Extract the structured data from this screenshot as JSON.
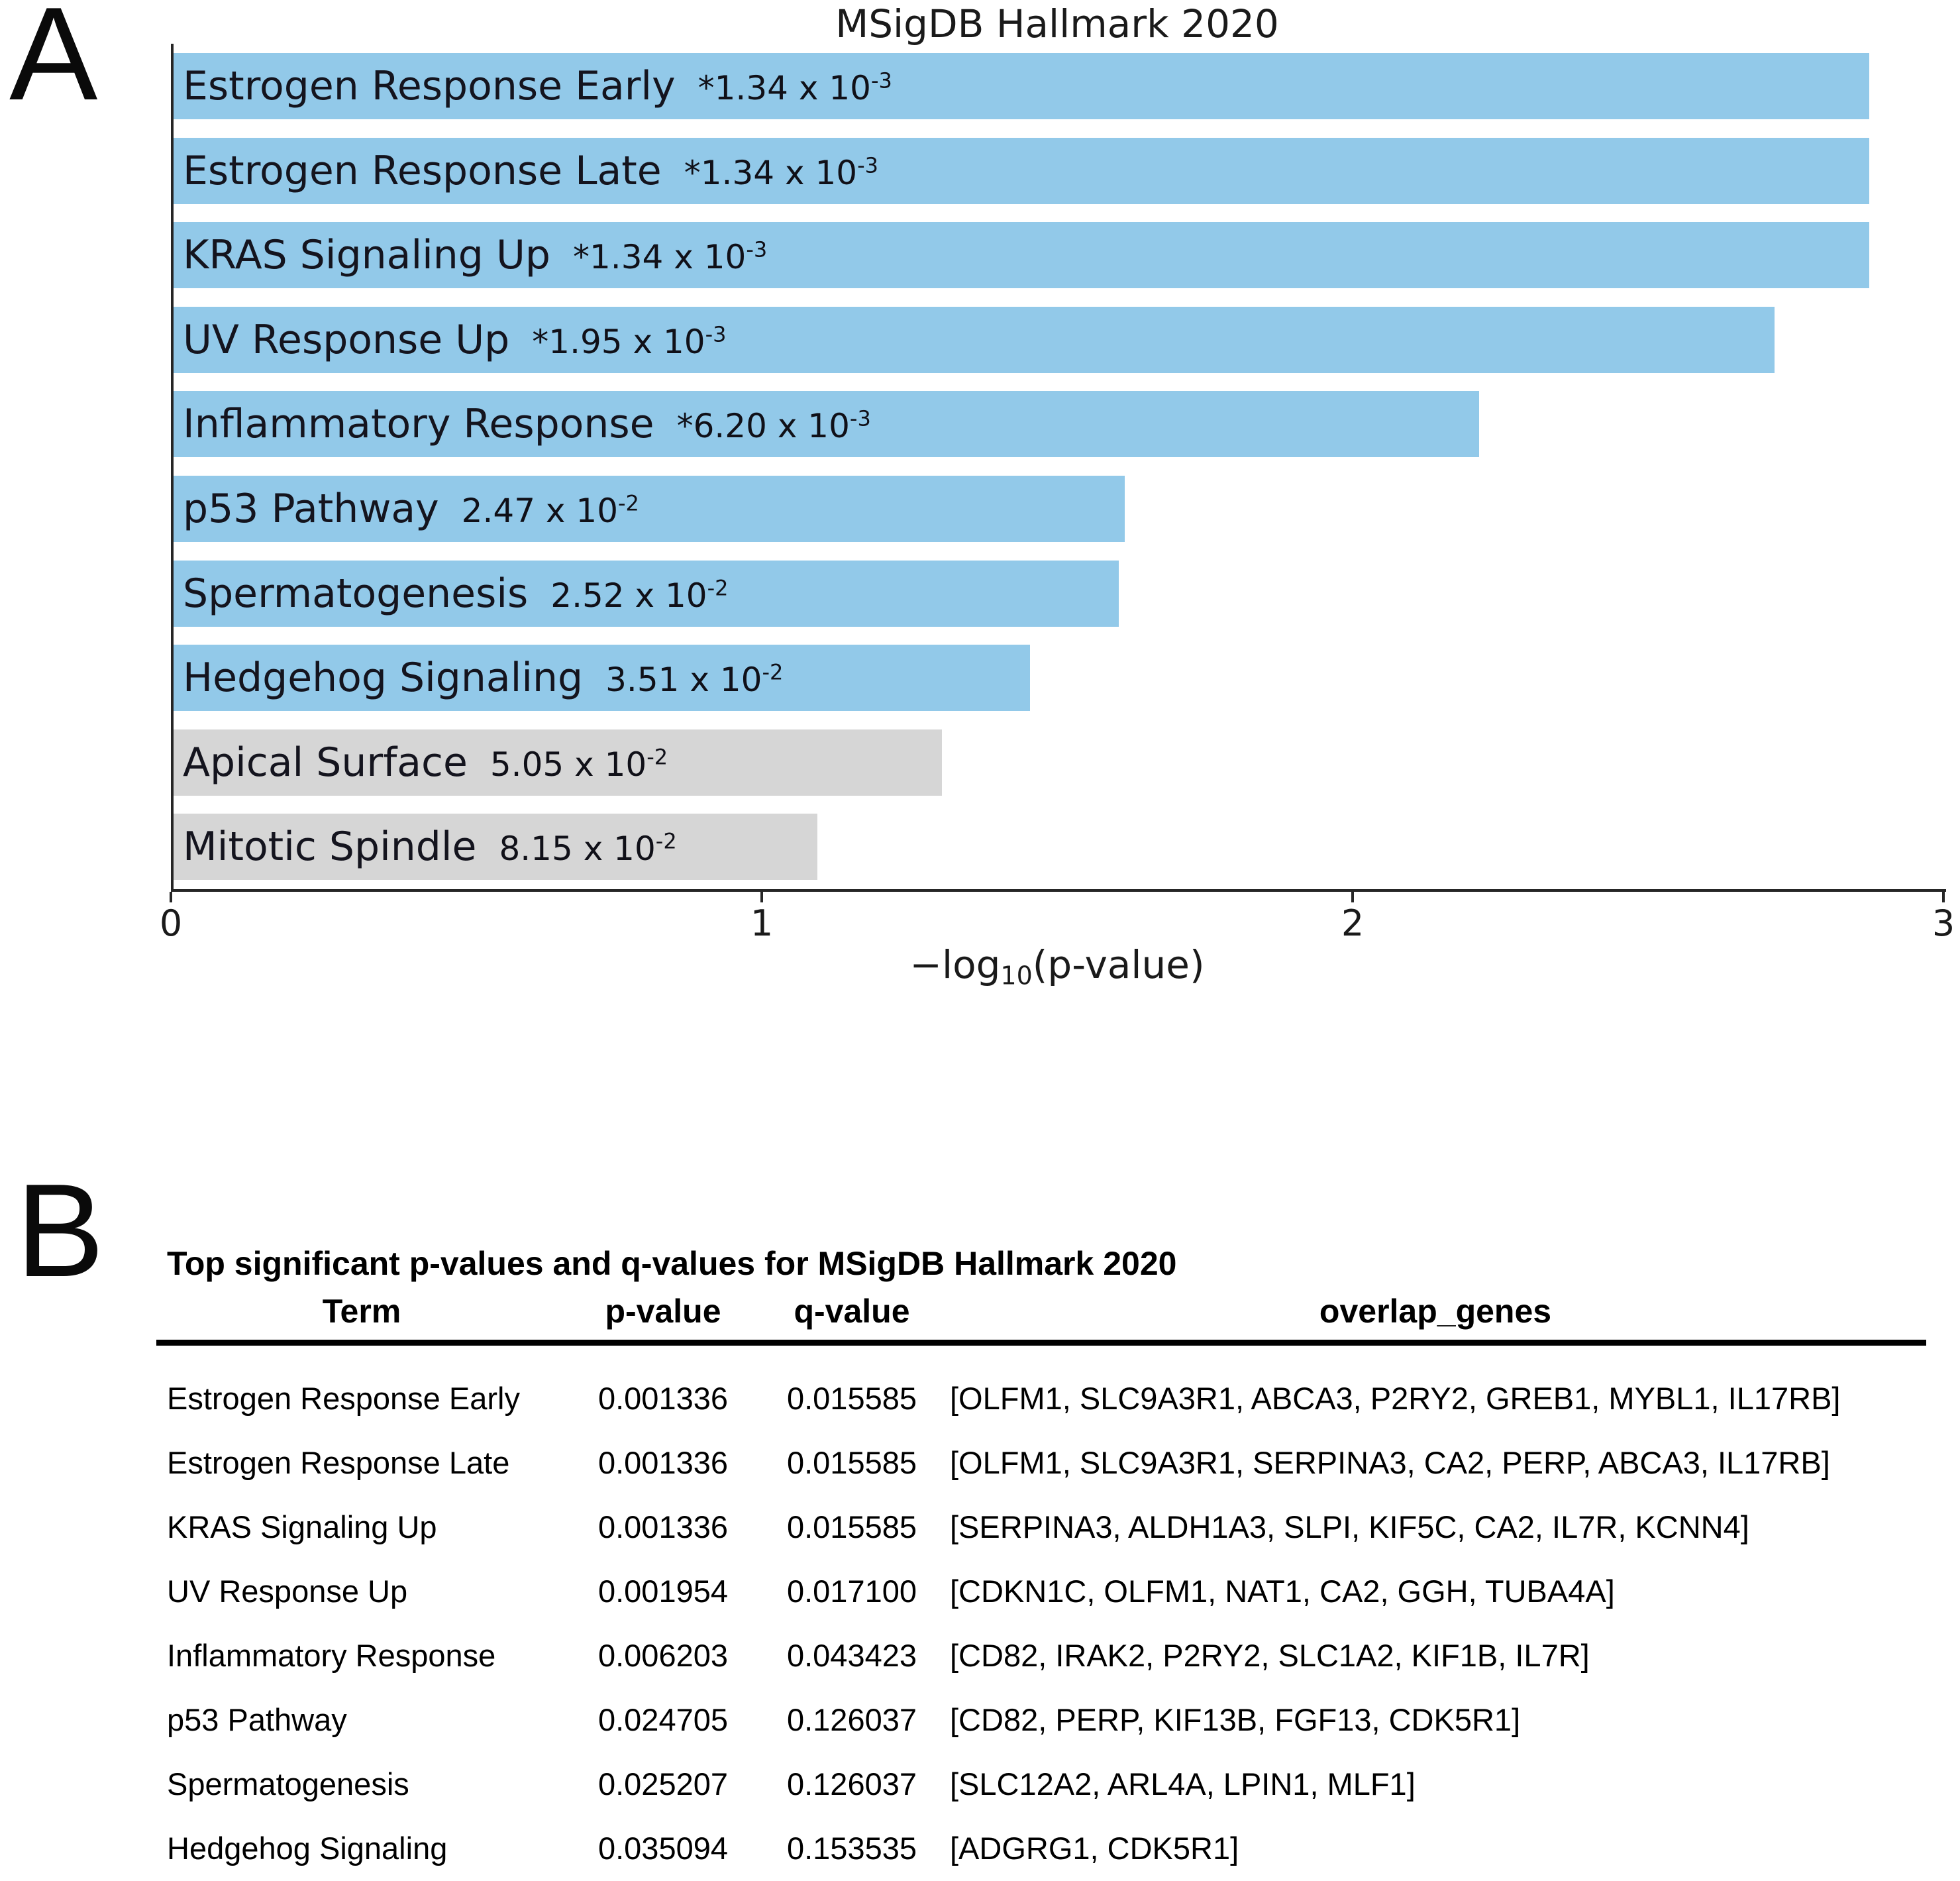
{
  "panel_a_label": "A",
  "panel_b_label": "B",
  "chart_data": [
    {
      "type": "bar",
      "orientation": "horizontal",
      "title": "MSigDB Hallmark 2020",
      "xlabel": "−log10(p-value)",
      "xlabel_parts": {
        "prefix": "−log",
        "sub": "10",
        "suffix": "(p-value)"
      },
      "xlim": [
        0,
        3
      ],
      "xticks": [
        "0",
        "1",
        "2",
        "3"
      ],
      "grid": false,
      "colors": {
        "significant": "#92c9e9",
        "non_significant": "#d6d6d6"
      },
      "bars": [
        {
          "term": "Estrogen Response Early",
          "p_display": "*1.34 x 10",
          "p_exponent": "-3",
          "neg_log10_p": 2.87,
          "significant": true
        },
        {
          "term": "Estrogen Response Late",
          "p_display": "*1.34 x 10",
          "p_exponent": "-3",
          "neg_log10_p": 2.87,
          "significant": true
        },
        {
          "term": "KRAS Signaling Up",
          "p_display": "*1.34 x 10",
          "p_exponent": "-3",
          "neg_log10_p": 2.87,
          "significant": true
        },
        {
          "term": "UV Response Up",
          "p_display": "*1.95 x 10",
          "p_exponent": "-3",
          "neg_log10_p": 2.71,
          "significant": true
        },
        {
          "term": "Inflammatory Response",
          "p_display": "*6.20 x 10",
          "p_exponent": "-3",
          "neg_log10_p": 2.21,
          "significant": true
        },
        {
          "term": "p53 Pathway",
          "p_display": "2.47 x 10",
          "p_exponent": "-2",
          "neg_log10_p": 1.61,
          "significant": true
        },
        {
          "term": "Spermatogenesis",
          "p_display": "2.52 x 10",
          "p_exponent": "-2",
          "neg_log10_p": 1.6,
          "significant": true
        },
        {
          "term": "Hedgehog Signaling",
          "p_display": "3.51 x 10",
          "p_exponent": "-2",
          "neg_log10_p": 1.45,
          "significant": true
        },
        {
          "term": "Apical Surface",
          "p_display": "5.05 x 10",
          "p_exponent": "-2",
          "neg_log10_p": 1.3,
          "significant": false
        },
        {
          "term": "Mitotic Spindle",
          "p_display": "8.15 x 10",
          "p_exponent": "-2",
          "neg_log10_p": 1.09,
          "significant": false
        }
      ]
    },
    {
      "type": "table",
      "title": "Top significant p-values and q-values for MSigDB Hallmark 2020",
      "columns": [
        "Term",
        "p-value",
        "q-value",
        "overlap_genes"
      ],
      "rows": [
        {
          "term": "Estrogen Response Early",
          "p_value": "0.001336",
          "q_value": "0.015585",
          "overlap_genes": "[OLFM1, SLC9A3R1, ABCA3, P2RY2, GREB1, MYBL1, IL17RB]"
        },
        {
          "term": "Estrogen Response Late",
          "p_value": "0.001336",
          "q_value": "0.015585",
          "overlap_genes": "[OLFM1, SLC9A3R1, SERPINA3, CA2, PERP, ABCA3, IL17RB]"
        },
        {
          "term": "KRAS Signaling Up",
          "p_value": "0.001336",
          "q_value": "0.015585",
          "overlap_genes": "[SERPINA3, ALDH1A3, SLPI, KIF5C, CA2, IL7R, KCNN4]"
        },
        {
          "term": "UV Response Up",
          "p_value": "0.001954",
          "q_value": "0.017100",
          "overlap_genes": "[CDKN1C, OLFM1, NAT1, CA2, GGH, TUBA4A]"
        },
        {
          "term": "Inflammatory Response",
          "p_value": "0.006203",
          "q_value": "0.043423",
          "overlap_genes": "[CD82, IRAK2, P2RY2, SLC1A2, KIF1B, IL7R]"
        },
        {
          "term": "p53 Pathway",
          "p_value": "0.024705",
          "q_value": "0.126037",
          "overlap_genes": "[CD82, PERP, KIF13B, FGF13, CDK5R1]"
        },
        {
          "term": "Spermatogenesis",
          "p_value": "0.025207",
          "q_value": "0.126037",
          "overlap_genes": "[SLC12A2, ARL4A, LPIN1, MLF1]"
        },
        {
          "term": "Hedgehog Signaling",
          "p_value": "0.035094",
          "q_value": "0.153535",
          "overlap_genes": "[ADGRG1, CDK5R1]"
        }
      ]
    }
  ]
}
